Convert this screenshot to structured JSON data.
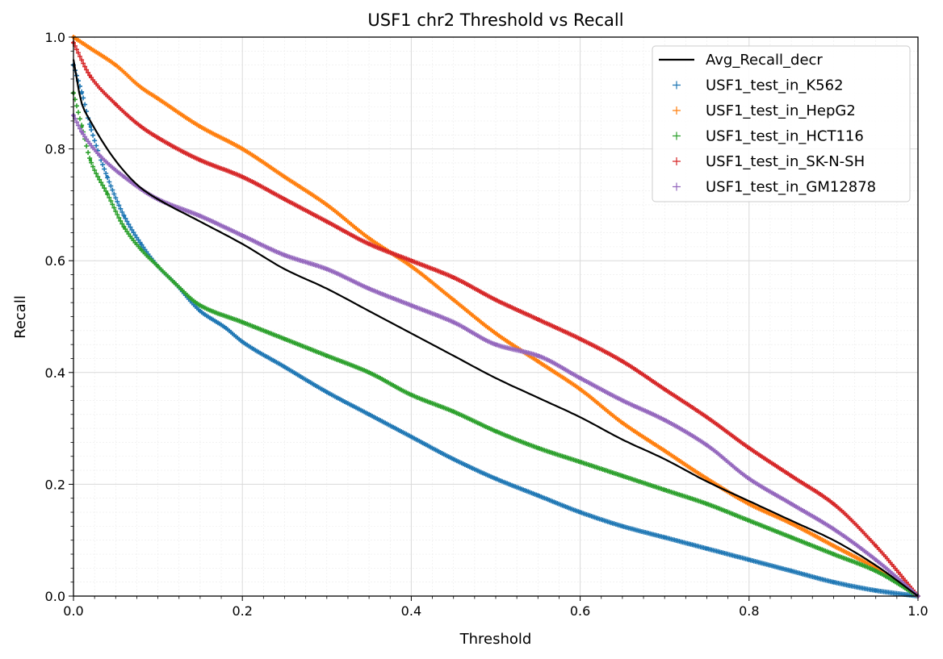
{
  "chart_data": {
    "type": "line",
    "title": "USF1 chr2 Threshold vs Recall",
    "xlabel": "Threshold",
    "ylabel": "Recall",
    "xlim": [
      0.0,
      1.0
    ],
    "ylim": [
      0.0,
      1.0
    ],
    "xticks": [
      "0.0",
      "0.2",
      "0.4",
      "0.6",
      "0.8",
      "1.0"
    ],
    "yticks": [
      "0.0",
      "0.2",
      "0.4",
      "0.6",
      "0.8",
      "1.0"
    ],
    "grid": true,
    "minor_grid": true,
    "legend_position": "top-right",
    "series": [
      {
        "name": "Avg_Recall_decr",
        "style": "line",
        "color": "#000000",
        "x": [
          0.0,
          0.01,
          0.02,
          0.04,
          0.06,
          0.08,
          0.1,
          0.15,
          0.2,
          0.25,
          0.3,
          0.35,
          0.4,
          0.45,
          0.5,
          0.55,
          0.6,
          0.65,
          0.7,
          0.75,
          0.8,
          0.85,
          0.9,
          0.95,
          1.0
        ],
        "y": [
          0.96,
          0.88,
          0.85,
          0.8,
          0.76,
          0.73,
          0.71,
          0.67,
          0.63,
          0.585,
          0.55,
          0.51,
          0.47,
          0.43,
          0.39,
          0.355,
          0.32,
          0.28,
          0.245,
          0.205,
          0.17,
          0.135,
          0.1,
          0.055,
          0.0
        ]
      },
      {
        "name": "USF1_test_in_K562",
        "style": "markers",
        "color": "#1f77b4",
        "x": [
          0.0,
          0.01,
          0.02,
          0.04,
          0.06,
          0.08,
          0.1,
          0.12,
          0.15,
          0.18,
          0.2,
          0.25,
          0.3,
          0.35,
          0.4,
          0.45,
          0.5,
          0.55,
          0.6,
          0.65,
          0.7,
          0.75,
          0.8,
          0.85,
          0.9,
          0.95,
          1.0
        ],
        "y": [
          0.95,
          0.9,
          0.84,
          0.75,
          0.68,
          0.63,
          0.59,
          0.56,
          0.51,
          0.48,
          0.455,
          0.41,
          0.365,
          0.325,
          0.285,
          0.245,
          0.21,
          0.18,
          0.15,
          0.125,
          0.105,
          0.085,
          0.065,
          0.045,
          0.025,
          0.01,
          0.0
        ]
      },
      {
        "name": "USF1_test_in_HepG2",
        "style": "markers",
        "color": "#ff7f0e",
        "x": [
          0.0,
          0.02,
          0.05,
          0.08,
          0.1,
          0.15,
          0.2,
          0.25,
          0.3,
          0.35,
          0.4,
          0.45,
          0.5,
          0.55,
          0.6,
          0.65,
          0.7,
          0.75,
          0.8,
          0.85,
          0.9,
          0.95,
          1.0
        ],
        "y": [
          1.0,
          0.98,
          0.95,
          0.91,
          0.89,
          0.84,
          0.8,
          0.75,
          0.7,
          0.64,
          0.59,
          0.53,
          0.47,
          0.42,
          0.37,
          0.31,
          0.26,
          0.21,
          0.165,
          0.13,
          0.09,
          0.05,
          0.0
        ]
      },
      {
        "name": "USF1_test_in_HCT116",
        "style": "markers",
        "color": "#2ca02c",
        "x": [
          0.0,
          0.01,
          0.02,
          0.04,
          0.06,
          0.08,
          0.1,
          0.12,
          0.15,
          0.2,
          0.25,
          0.3,
          0.35,
          0.4,
          0.45,
          0.5,
          0.55,
          0.6,
          0.65,
          0.7,
          0.75,
          0.8,
          0.85,
          0.9,
          0.95,
          1.0
        ],
        "y": [
          0.9,
          0.84,
          0.78,
          0.72,
          0.66,
          0.62,
          0.59,
          0.56,
          0.52,
          0.49,
          0.46,
          0.43,
          0.4,
          0.36,
          0.33,
          0.295,
          0.265,
          0.24,
          0.215,
          0.19,
          0.165,
          0.135,
          0.105,
          0.075,
          0.045,
          0.0
        ]
      },
      {
        "name": "USF1_test_in_SK-N-SH",
        "style": "markers",
        "color": "#d62728",
        "x": [
          0.0,
          0.02,
          0.05,
          0.08,
          0.1,
          0.15,
          0.2,
          0.25,
          0.3,
          0.35,
          0.4,
          0.45,
          0.5,
          0.55,
          0.6,
          0.65,
          0.7,
          0.75,
          0.8,
          0.85,
          0.9,
          0.95,
          1.0
        ],
        "y": [
          0.99,
          0.93,
          0.88,
          0.84,
          0.82,
          0.78,
          0.75,
          0.71,
          0.67,
          0.63,
          0.6,
          0.57,
          0.53,
          0.495,
          0.46,
          0.42,
          0.37,
          0.32,
          0.265,
          0.215,
          0.165,
          0.09,
          0.0
        ]
      },
      {
        "name": "USF1_test_in_GM12878",
        "style": "markers",
        "color": "#9467bd",
        "x": [
          0.0,
          0.01,
          0.03,
          0.06,
          0.1,
          0.15,
          0.2,
          0.25,
          0.3,
          0.35,
          0.4,
          0.45,
          0.5,
          0.55,
          0.6,
          0.65,
          0.7,
          0.75,
          0.8,
          0.85,
          0.9,
          0.95,
          1.0
        ],
        "y": [
          0.86,
          0.83,
          0.79,
          0.75,
          0.71,
          0.68,
          0.645,
          0.61,
          0.585,
          0.55,
          0.52,
          0.49,
          0.45,
          0.43,
          0.39,
          0.35,
          0.315,
          0.27,
          0.21,
          0.165,
          0.12,
          0.065,
          0.0
        ]
      }
    ]
  }
}
